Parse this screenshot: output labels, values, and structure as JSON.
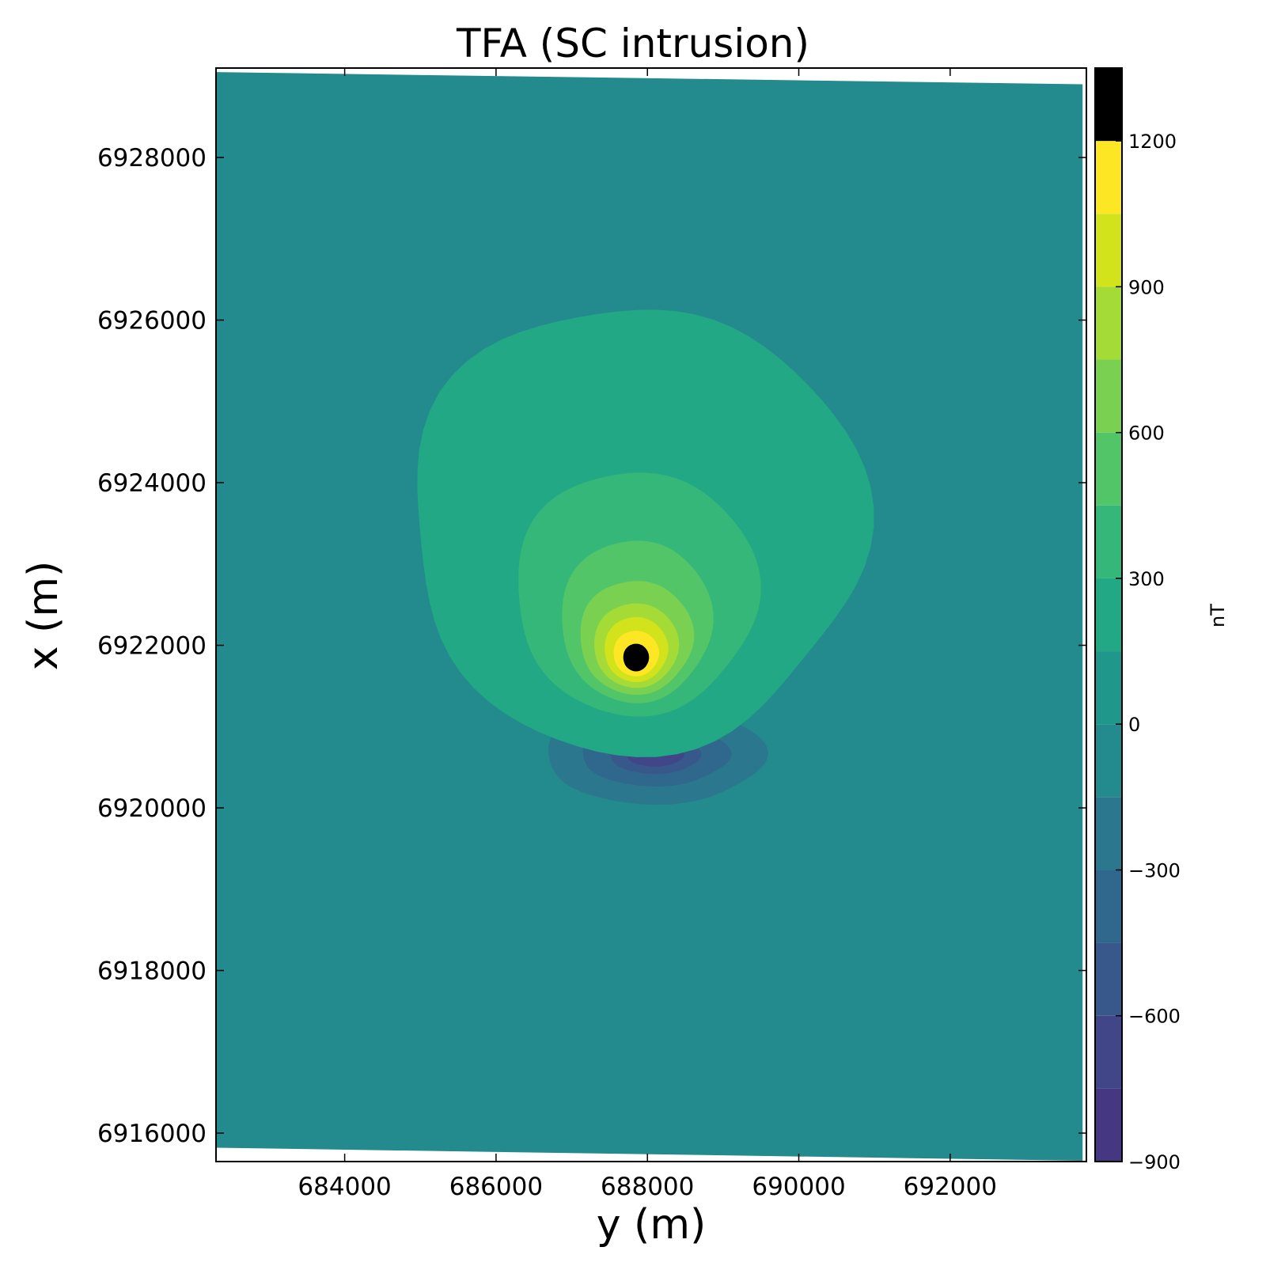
{
  "chart_data": {
    "type": "contour",
    "title": "TFA (SC intrusion)",
    "xlabel": "y (m)",
    "ylabel": "x (m)",
    "xlim": [
      682300,
      693800
    ],
    "ylim": [
      6915650,
      6929100
    ],
    "xticks": [
      "684000",
      "686000",
      "688000",
      "690000",
      "692000"
    ],
    "xtick_values": [
      684000,
      686000,
      688000,
      690000,
      692000
    ],
    "yticks": [
      "6916000",
      "6918000",
      "6920000",
      "6922000",
      "6924000",
      "6926000",
      "6928000"
    ],
    "ytick_values": [
      6916000,
      6918000,
      6920000,
      6922000,
      6924000,
      6926000,
      6928000
    ],
    "colorbar": {
      "label": "nT",
      "range": [
        -900,
        1350
      ],
      "levels": [
        -900,
        -750,
        -600,
        -450,
        -300,
        -150,
        0,
        150,
        300,
        450,
        600,
        750,
        900,
        1050,
        1200,
        1350
      ],
      "tick_values": [
        -900,
        -600,
        -300,
        0,
        300,
        600,
        900,
        1200
      ],
      "tick_labels": [
        "−900",
        "−600",
        "−300",
        "0",
        "300",
        "600",
        "900",
        "1200"
      ],
      "colors": [
        "#453781",
        "#404688",
        "#38588c",
        "#30678d",
        "#2b788e",
        "#238a8d",
        "#1f988b",
        "#22a884",
        "#35b779",
        "#52c569",
        "#7ad151",
        "#a5db36",
        "#d2e21b",
        "#fde725"
      ]
    },
    "anomalies": [
      {
        "kind": "positive",
        "peak_nT": 1300,
        "center_y": 687850,
        "center_x": 6921850
      },
      {
        "kind": "negative",
        "peak_nT": -820,
        "center_y": 688100,
        "center_x": 6920650
      }
    ],
    "background_nT": -50,
    "grid": false
  }
}
